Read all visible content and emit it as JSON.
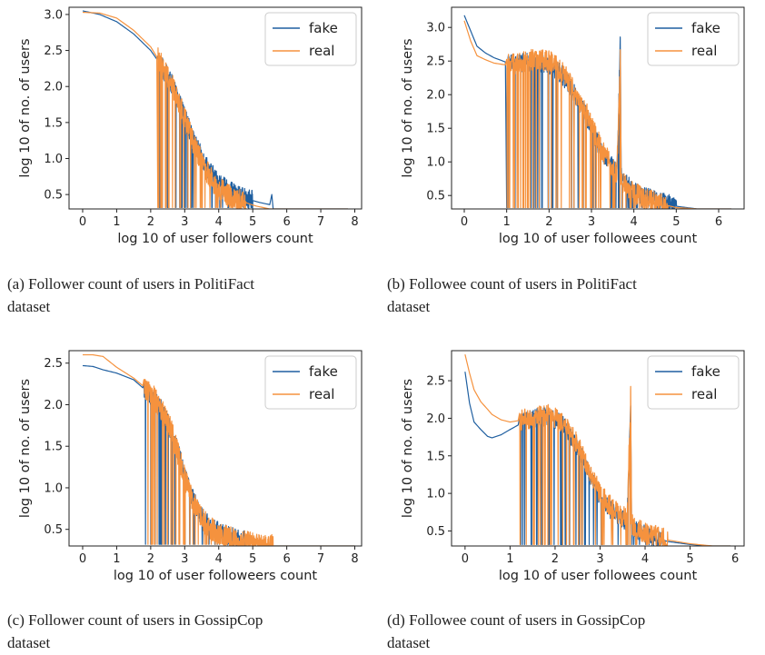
{
  "chart_data": [
    {
      "type": "line",
      "xlabel": "log 10 of user followers count",
      "ylabel": "log 10 of no. of users",
      "xlim": [
        -0.4,
        8.2
      ],
      "ylim": [
        0.3,
        3.1
      ],
      "xticks": [
        "0",
        "1",
        "2",
        "3",
        "4",
        "5",
        "6",
        "7",
        "8"
      ],
      "yticks": [
        "0.5",
        "1.0",
        "1.5",
        "2.0",
        "2.5",
        "3.0"
      ],
      "legend": "top-right",
      "caption": [
        "(a) Follower count of users in PolitiFact",
        "dataset"
      ],
      "series": [
        {
          "name": "fake",
          "color": "#1f5fa0",
          "x": [
            0,
            0.5,
            1,
            1.5,
            2,
            2.3,
            2.6,
            2.9,
            3.1,
            3.3,
            3.5,
            3.7,
            3.9,
            4.1,
            4.3,
            4.6,
            4.9,
            5.2,
            5.5,
            5.56,
            5.6,
            6,
            7,
            7.8
          ],
          "y": [
            3.05,
            3.0,
            2.9,
            2.73,
            2.5,
            2.3,
            2.05,
            1.7,
            1.45,
            1.2,
            1.02,
            0.85,
            0.72,
            0.62,
            0.55,
            0.48,
            0.43,
            0.39,
            0.36,
            0.5,
            0.3,
            0.3,
            0.3,
            0.3
          ],
          "noise": 0.14,
          "noise_from": 2.2,
          "noise_to": 5.0
        },
        {
          "name": "real",
          "color": "#f5923e",
          "x": [
            0,
            0.5,
            1,
            1.5,
            2,
            2.3,
            2.6,
            2.9,
            3.1,
            3.3,
            3.5,
            3.7,
            3.9,
            4.1,
            4.3,
            4.6,
            4.9,
            5.1,
            5.5,
            6,
            7,
            7.8
          ],
          "y": [
            3.03,
            3.02,
            2.95,
            2.78,
            2.55,
            2.32,
            2.05,
            1.7,
            1.42,
            1.15,
            0.95,
            0.78,
            0.64,
            0.55,
            0.48,
            0.42,
            0.37,
            0.34,
            0.3,
            0.3,
            0.3,
            0.3
          ],
          "noise": 0.16,
          "noise_from": 2.2,
          "noise_to": 4.8
        }
      ]
    },
    {
      "type": "line",
      "xlabel": "log 10 of user followees count",
      "ylabel": "log 10 of no. of users",
      "xlim": [
        -0.3,
        6.6
      ],
      "ylim": [
        0.3,
        3.3
      ],
      "xticks": [
        "0",
        "1",
        "2",
        "3",
        "4",
        "5",
        "6"
      ],
      "yticks": [
        "0.5",
        "1.0",
        "1.5",
        "2.0",
        "2.5",
        "3.0"
      ],
      "legend": "top-right",
      "caption": [
        "(b) Followee count of users in PolitiFact",
        "dataset"
      ],
      "series": [
        {
          "name": "fake",
          "color": "#1f5fa0",
          "x": [
            0,
            0.15,
            0.3,
            0.5,
            0.7,
            1,
            1.3,
            1.6,
            2,
            2.3,
            2.6,
            2.9,
            3.1,
            3.3,
            3.5,
            3.6,
            3.68,
            3.7,
            3.72,
            3.8,
            4.0,
            4.2,
            4.5,
            4.8,
            5.0,
            5.5,
            6.0,
            6.3
          ],
          "y": [
            3.18,
            2.95,
            2.72,
            2.62,
            2.55,
            2.48,
            2.47,
            2.48,
            2.45,
            2.3,
            2.02,
            1.65,
            1.35,
            1.1,
            0.92,
            0.85,
            2.78,
            0.8,
            0.75,
            0.68,
            0.58,
            0.5,
            0.43,
            0.38,
            0.34,
            0.3,
            0.3,
            0.3
          ],
          "noise": 0.14,
          "noise_from": 1.0,
          "noise_to": 5.0
        },
        {
          "name": "real",
          "color": "#f5923e",
          "x": [
            0,
            0.15,
            0.3,
            0.5,
            0.7,
            1,
            1.3,
            1.6,
            2,
            2.3,
            2.6,
            2.9,
            3.1,
            3.3,
            3.5,
            3.6,
            3.68,
            3.7,
            3.72,
            3.8,
            4.0,
            4.2,
            4.5,
            4.8,
            5.0,
            5.5,
            6.0,
            6.3
          ],
          "y": [
            3.1,
            2.8,
            2.58,
            2.52,
            2.47,
            2.44,
            2.46,
            2.52,
            2.5,
            2.36,
            2.05,
            1.7,
            1.4,
            1.12,
            0.92,
            0.84,
            2.6,
            0.78,
            0.72,
            0.65,
            0.55,
            0.47,
            0.4,
            0.35,
            0.32,
            0.3,
            0.3,
            0.3
          ],
          "noise": 0.16,
          "noise_from": 1.0,
          "noise_to": 4.8
        }
      ]
    },
    {
      "type": "line",
      "xlabel": "log 10 of user followeers count",
      "ylabel": "log 10 of no. of users",
      "xlim": [
        -0.4,
        8.2
      ],
      "ylim": [
        0.3,
        2.65
      ],
      "xticks": [
        "0",
        "1",
        "2",
        "3",
        "4",
        "5",
        "6",
        "7",
        "8"
      ],
      "yticks": [
        "0.5",
        "1.0",
        "1.5",
        "2.0",
        "2.5"
      ],
      "legend": "top-right",
      "caption": [
        "(c) Follower count of users in GossipCop",
        "dataset"
      ],
      "series": [
        {
          "name": "fake",
          "color": "#1f5fa0",
          "x": [
            0,
            0.3,
            0.6,
            1,
            1.5,
            2,
            2.3,
            2.6,
            2.8,
            3.0,
            3.2,
            3.4,
            3.6,
            3.8,
            4.0,
            4.3,
            4.6,
            5.0,
            5.5,
            6,
            7,
            8
          ],
          "y": [
            2.47,
            2.46,
            2.42,
            2.38,
            2.3,
            2.12,
            1.95,
            1.7,
            1.45,
            1.15,
            0.9,
            0.72,
            0.6,
            0.52,
            0.47,
            0.42,
            0.38,
            0.34,
            0.3,
            0.3,
            0.3,
            0.3
          ],
          "noise": 0.12,
          "noise_from": 1.8,
          "noise_to": 4.8
        },
        {
          "name": "real",
          "color": "#f5923e",
          "x": [
            0,
            0.3,
            0.6,
            1,
            1.5,
            2,
            2.3,
            2.6,
            2.8,
            3.0,
            3.2,
            3.4,
            3.6,
            3.8,
            4.0,
            4.3,
            4.6,
            5.0,
            5.2,
            5.5,
            5.6,
            6,
            7,
            8
          ],
          "y": [
            2.6,
            2.6,
            2.58,
            2.45,
            2.32,
            2.15,
            1.95,
            1.7,
            1.42,
            1.12,
            0.88,
            0.7,
            0.58,
            0.5,
            0.45,
            0.4,
            0.36,
            0.33,
            0.3,
            0.3,
            0.3,
            0.3,
            0.3,
            0.3
          ],
          "noise": 0.14,
          "noise_from": 1.8,
          "noise_to": 5.6
        }
      ]
    },
    {
      "type": "line",
      "xlabel": "log 10 of user followees count",
      "ylabel": "log 10 of no. of users",
      "xlim": [
        -0.3,
        6.2
      ],
      "ylim": [
        0.3,
        2.9
      ],
      "xticks": [
        "0",
        "1",
        "2",
        "3",
        "4",
        "5",
        "6"
      ],
      "yticks": [
        "0.5",
        "1.0",
        "1.5",
        "2.0",
        "2.5"
      ],
      "legend": "top-right",
      "caption": [
        "(d) Followee count of users in GossipCop",
        "dataset"
      ],
      "series": [
        {
          "name": "fake",
          "color": "#1f5fa0",
          "x": [
            0,
            0.1,
            0.2,
            0.35,
            0.5,
            0.6,
            0.8,
            1,
            1.3,
            1.6,
            1.9,
            2.2,
            2.5,
            2.8,
            3.0,
            3.2,
            3.4,
            3.6,
            3.68,
            3.7,
            3.72,
            3.9,
            4.2,
            4.5,
            5,
            5.5,
            5.9
          ],
          "y": [
            2.62,
            2.2,
            1.95,
            1.85,
            1.76,
            1.74,
            1.78,
            1.85,
            1.95,
            2.02,
            2.02,
            1.9,
            1.6,
            1.2,
            0.95,
            0.8,
            0.7,
            0.62,
            2.12,
            0.6,
            0.55,
            0.48,
            0.42,
            0.36,
            0.32,
            0.3,
            0.3
          ],
          "noise": 0.12,
          "noise_from": 1.2,
          "noise_to": 4.4
        },
        {
          "name": "real",
          "color": "#f5923e",
          "x": [
            0,
            0.1,
            0.2,
            0.35,
            0.5,
            0.6,
            0.8,
            1,
            1.3,
            1.6,
            1.9,
            2.2,
            2.5,
            2.8,
            3.0,
            3.2,
            3.4,
            3.6,
            3.68,
            3.7,
            3.72,
            3.9,
            4.2,
            4.5,
            5,
            5.5,
            5.9
          ],
          "y": [
            2.85,
            2.6,
            2.38,
            2.22,
            2.12,
            2.05,
            1.98,
            1.95,
            1.98,
            2.02,
            2.05,
            1.92,
            1.65,
            1.25,
            1.0,
            0.85,
            0.74,
            0.66,
            2.3,
            0.63,
            0.58,
            0.5,
            0.44,
            0.38,
            0.33,
            0.3,
            0.3
          ],
          "noise": 0.14,
          "noise_from": 1.2,
          "noise_to": 4.5
        }
      ]
    }
  ]
}
